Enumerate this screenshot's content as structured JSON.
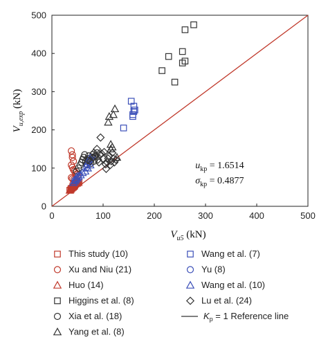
{
  "chart_data": {
    "type": "scatter",
    "x_axis": {
      "symbol": "V",
      "subscript": "u5",
      "unit": " (kN)",
      "range": [
        0,
        500
      ],
      "ticks": [
        0,
        100,
        200,
        300,
        400,
        500
      ]
    },
    "y_axis": {
      "symbol": "V",
      "subscript": "u,exp",
      "unit": " (kN)",
      "range": [
        0,
        500
      ],
      "ticks": [
        0,
        100,
        200,
        300,
        400,
        500
      ]
    },
    "grid": false,
    "reference_line": {
      "symbol": "K",
      "subscript": "p",
      "rest": " = 1 Reference line",
      "color": "#c0392b",
      "points": [
        [
          0,
          0
        ],
        [
          500,
          500
        ]
      ]
    },
    "annotations": [
      {
        "symbol": "u",
        "subscript": "kp",
        "value": " = 1.6514"
      },
      {
        "symbol": "σ",
        "subscript": "kp",
        "value": " = 0.4877"
      }
    ],
    "legend_position": "bottom",
    "series": [
      {
        "name": "This study (10)",
        "marker": "square",
        "color": "#c0392b",
        "points": [
          [
            35,
            42
          ],
          [
            37,
            45
          ],
          [
            38,
            47
          ],
          [
            40,
            48
          ],
          [
            42,
            50
          ],
          [
            44,
            52
          ],
          [
            45,
            55
          ],
          [
            47,
            58
          ],
          [
            50,
            60
          ],
          [
            53,
            62
          ]
        ]
      },
      {
        "name": "Xu and Niu (21)",
        "marker": "circle",
        "color": "#c0392b",
        "points": [
          [
            38,
            145
          ],
          [
            40,
            135
          ],
          [
            40,
            128
          ],
          [
            42,
            118
          ],
          [
            38,
            108
          ],
          [
            40,
            102
          ],
          [
            42,
            96
          ],
          [
            44,
            92
          ],
          [
            46,
            88
          ],
          [
            48,
            84
          ],
          [
            50,
            80
          ],
          [
            38,
            75
          ],
          [
            40,
            72
          ],
          [
            43,
            70
          ],
          [
            45,
            68
          ],
          [
            47,
            66
          ],
          [
            49,
            64
          ],
          [
            51,
            62
          ],
          [
            41,
            58
          ],
          [
            44,
            56
          ],
          [
            46,
            54
          ]
        ]
      },
      {
        "name": "Huo (14)",
        "marker": "triangle",
        "color": "#c0392b",
        "points": [
          [
            35,
            42
          ],
          [
            36,
            44
          ],
          [
            37,
            46
          ],
          [
            38,
            48
          ],
          [
            40,
            50
          ],
          [
            41,
            52
          ],
          [
            42,
            54
          ],
          [
            43,
            56
          ],
          [
            44,
            58
          ],
          [
            45,
            60
          ],
          [
            46,
            62
          ],
          [
            47,
            64
          ],
          [
            48,
            66
          ],
          [
            50,
            68
          ]
        ]
      },
      {
        "name": "Higgins et al. (8)",
        "marker": "square",
        "color": "#333333",
        "points": [
          [
            215,
            355
          ],
          [
            228,
            392
          ],
          [
            240,
            325
          ],
          [
            255,
            405
          ],
          [
            255,
            375
          ],
          [
            260,
            380
          ],
          [
            260,
            462
          ],
          [
            277,
            475
          ]
        ]
      },
      {
        "name": "Xia et al. (18)",
        "marker": "circle",
        "color": "#333333",
        "points": [
          [
            48,
            92
          ],
          [
            52,
            100
          ],
          [
            55,
            108
          ],
          [
            58,
            115
          ],
          [
            60,
            122
          ],
          [
            62,
            128
          ],
          [
            64,
            135
          ],
          [
            66,
            118
          ],
          [
            68,
            110
          ],
          [
            70,
            125
          ],
          [
            72,
            132
          ],
          [
            74,
            120
          ],
          [
            76,
            112
          ],
          [
            78,
            128
          ],
          [
            80,
            135
          ],
          [
            82,
            118
          ],
          [
            85,
            130
          ],
          [
            88,
            140
          ]
        ]
      },
      {
        "name": "Yang et al. (8)",
        "marker": "triangle",
        "color": "#333333",
        "points": [
          [
            110,
            220
          ],
          [
            112,
            235
          ],
          [
            115,
            162
          ],
          [
            115,
            150
          ],
          [
            118,
            155
          ],
          [
            120,
            240
          ],
          [
            123,
            255
          ],
          [
            127,
            128
          ]
        ]
      },
      {
        "name": "Wang et al. (7)",
        "marker": "square",
        "color": "#3b4fb8",
        "points": [
          [
            140,
            205
          ],
          [
            155,
            275
          ],
          [
            158,
            240
          ],
          [
            160,
            262
          ],
          [
            160,
            248
          ],
          [
            162,
            252
          ],
          [
            158,
            235
          ]
        ]
      },
      {
        "name": "Yu (8)",
        "marker": "circle",
        "color": "#3b4fb8",
        "points": [
          [
            45,
            68
          ],
          [
            48,
            72
          ],
          [
            52,
            80
          ],
          [
            68,
            102
          ],
          [
            70,
            108
          ],
          [
            72,
            115
          ],
          [
            75,
            122
          ],
          [
            78,
            128
          ]
        ]
      },
      {
        "name": "Wang et al. (10)",
        "marker": "triangle",
        "color": "#3b4fb8",
        "points": [
          [
            42,
            62
          ],
          [
            45,
            66
          ],
          [
            47,
            70
          ],
          [
            50,
            74
          ],
          [
            52,
            78
          ],
          [
            56,
            82
          ],
          [
            60,
            88
          ],
          [
            65,
            92
          ],
          [
            70,
            100
          ],
          [
            75,
            108
          ]
        ]
      },
      {
        "name": "Lu et al. (24)",
        "marker": "diamond",
        "color": "#333333",
        "points": [
          [
            70,
            120
          ],
          [
            75,
            118
          ],
          [
            80,
            128
          ],
          [
            82,
            140
          ],
          [
            85,
            132
          ],
          [
            88,
            150
          ],
          [
            90,
            122
          ],
          [
            92,
            115
          ],
          [
            95,
            180
          ],
          [
            95,
            135
          ],
          [
            97,
            138
          ],
          [
            100,
            125
          ],
          [
            102,
            142
          ],
          [
            105,
            110
          ],
          [
            106,
            98
          ],
          [
            108,
            115
          ],
          [
            110,
            125
          ],
          [
            112,
            132
          ],
          [
            114,
            108
          ],
          [
            116,
            118
          ],
          [
            118,
            140
          ],
          [
            120,
            125
          ],
          [
            122,
            115
          ],
          [
            125,
            122
          ]
        ]
      }
    ]
  }
}
